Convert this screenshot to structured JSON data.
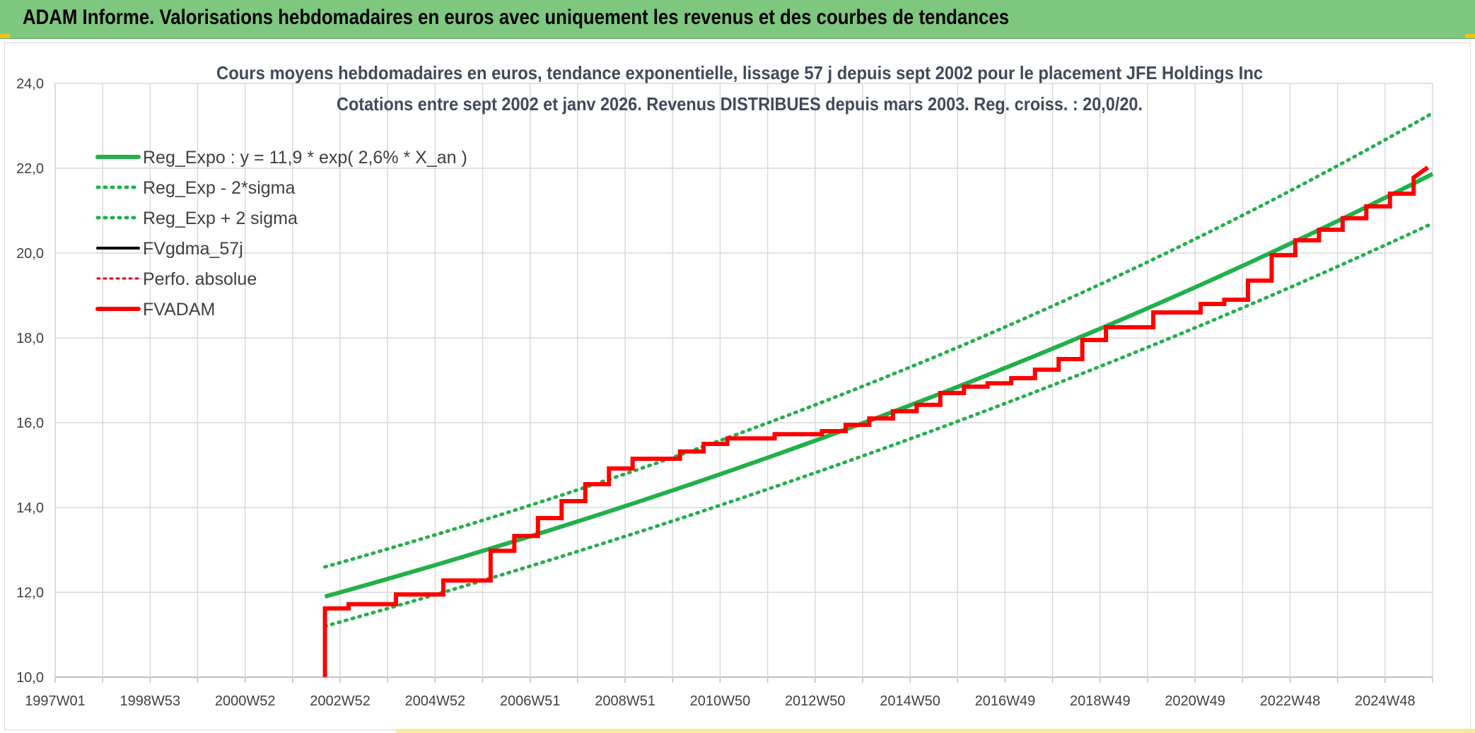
{
  "banner": {
    "title": "ADAM Informe. Valorisations hebdomadaires en euros avec uniquement les revenus et des courbes de tendances"
  },
  "colors": {
    "banner_bg": "#7ec77e",
    "reg_green": "#22b04b",
    "dotted_green": "#22b04b",
    "fvgdma_black": "#000000",
    "perfo_red": "#e00000",
    "fvadam_red": "#ff0000",
    "corner_yellow": "#f0c419"
  },
  "chart_data": {
    "type": "line",
    "subtitle_line1": "Cours moyens hebdomadaires en euros, tendance exponentielle, lissage 57 j depuis sept 2002 pour le placement JFE Holdings Inc",
    "subtitle_line2": "Cotations entre sept 2002 et janv 2026. Revenus DISTRIBUES depuis mars 2003. Reg. croiss. : 20,0/20.",
    "ylim": [
      10,
      24
    ],
    "yticks": [
      "10,0",
      "12,0",
      "14,0",
      "16,0",
      "18,0",
      "20,0",
      "22,0",
      "24,0"
    ],
    "xticks": [
      "1997W01",
      "1998W53",
      "2000W52",
      "2002W52",
      "2004W52",
      "2006W51",
      "2008W51",
      "2010W50",
      "2012W50",
      "2014W50",
      "2016W49",
      "2018W49",
      "2020W49",
      "2022W48",
      "2024W48"
    ],
    "xlim": [
      1997.0,
      2026.1
    ],
    "grid": true,
    "legend_position": "top-left",
    "legend": [
      {
        "name": "Reg_Expo : y = 11,9 * exp( 2,6% *  X_an )",
        "style": "solid-green-thick"
      },
      {
        "name": "Reg_Exp - 2*sigma",
        "style": "dotted-green"
      },
      {
        "name": "Reg_Exp + 2 sigma",
        "style": "dotted-green"
      },
      {
        "name": "FVgdma_57j",
        "style": "solid-black"
      },
      {
        "name": "Perfo. absolue",
        "style": "dotted-red"
      },
      {
        "name": "FVADAM",
        "style": "solid-red-thick"
      }
    ],
    "regression": {
      "start_year": 2002.7,
      "end_year": 2026.1,
      "a": 11.9,
      "rate": 0.026,
      "lower_offset": -0.7,
      "upper_offset": 0.7,
      "lower_end": 20.7,
      "upper_end": 23.3
    },
    "series": [
      {
        "name": "FVADAM",
        "x": [
          2002.7,
          2002.7,
          2003.2,
          2003.2,
          2004.2,
          2004.2,
          2005.2,
          2005.2,
          2006.2,
          2006.2,
          2006.7,
          2006.7,
          2007.2,
          2007.2,
          2007.7,
          2007.7,
          2008.2,
          2008.2,
          2008.7,
          2008.7,
          2009.2,
          2009.2,
          2010.2,
          2010.2,
          2010.7,
          2010.7,
          2011.2,
          2011.2,
          2012.2,
          2012.2,
          2013.2,
          2013.2,
          2013.7,
          2013.7,
          2014.2,
          2014.2,
          2014.7,
          2014.7,
          2015.2,
          2015.2,
          2015.7,
          2015.7,
          2016.2,
          2016.2,
          2016.7,
          2016.7,
          2017.2,
          2017.2,
          2017.7,
          2017.7,
          2018.2,
          2018.2,
          2018.7,
          2018.7,
          2019.2,
          2019.2,
          2020.2,
          2020.2,
          2021.2,
          2021.2,
          2021.7,
          2021.7,
          2022.2,
          2022.2,
          2022.7,
          2022.7,
          2023.2,
          2023.2,
          2023.7,
          2023.7,
          2024.2,
          2024.2,
          2024.7,
          2024.7,
          2025.2,
          2025.2,
          2025.7,
          2025.7,
          2026.0
        ],
        "y": [
          10.0,
          11.62,
          11.62,
          11.72,
          11.72,
          11.95,
          11.95,
          12.28,
          12.28,
          12.98,
          12.98,
          13.33,
          13.33,
          13.75,
          13.75,
          14.15,
          14.15,
          14.55,
          14.55,
          14.92,
          14.92,
          15.15,
          15.15,
          15.32,
          15.32,
          15.5,
          15.5,
          15.63,
          15.63,
          15.73,
          15.73,
          15.8,
          15.8,
          15.95,
          15.95,
          16.1,
          16.1,
          16.27,
          16.27,
          16.42,
          16.42,
          16.7,
          16.7,
          16.85,
          16.85,
          16.93,
          16.93,
          17.05,
          17.05,
          17.25,
          17.25,
          17.5,
          17.5,
          17.95,
          17.95,
          18.25,
          18.25,
          18.6,
          18.6,
          18.8,
          18.8,
          18.9,
          18.9,
          19.35,
          19.35,
          19.95,
          19.95,
          20.3,
          20.3,
          20.55,
          20.55,
          20.82,
          20.82,
          21.1,
          21.1,
          21.4,
          21.4,
          21.78,
          22.02
        ]
      }
    ]
  }
}
